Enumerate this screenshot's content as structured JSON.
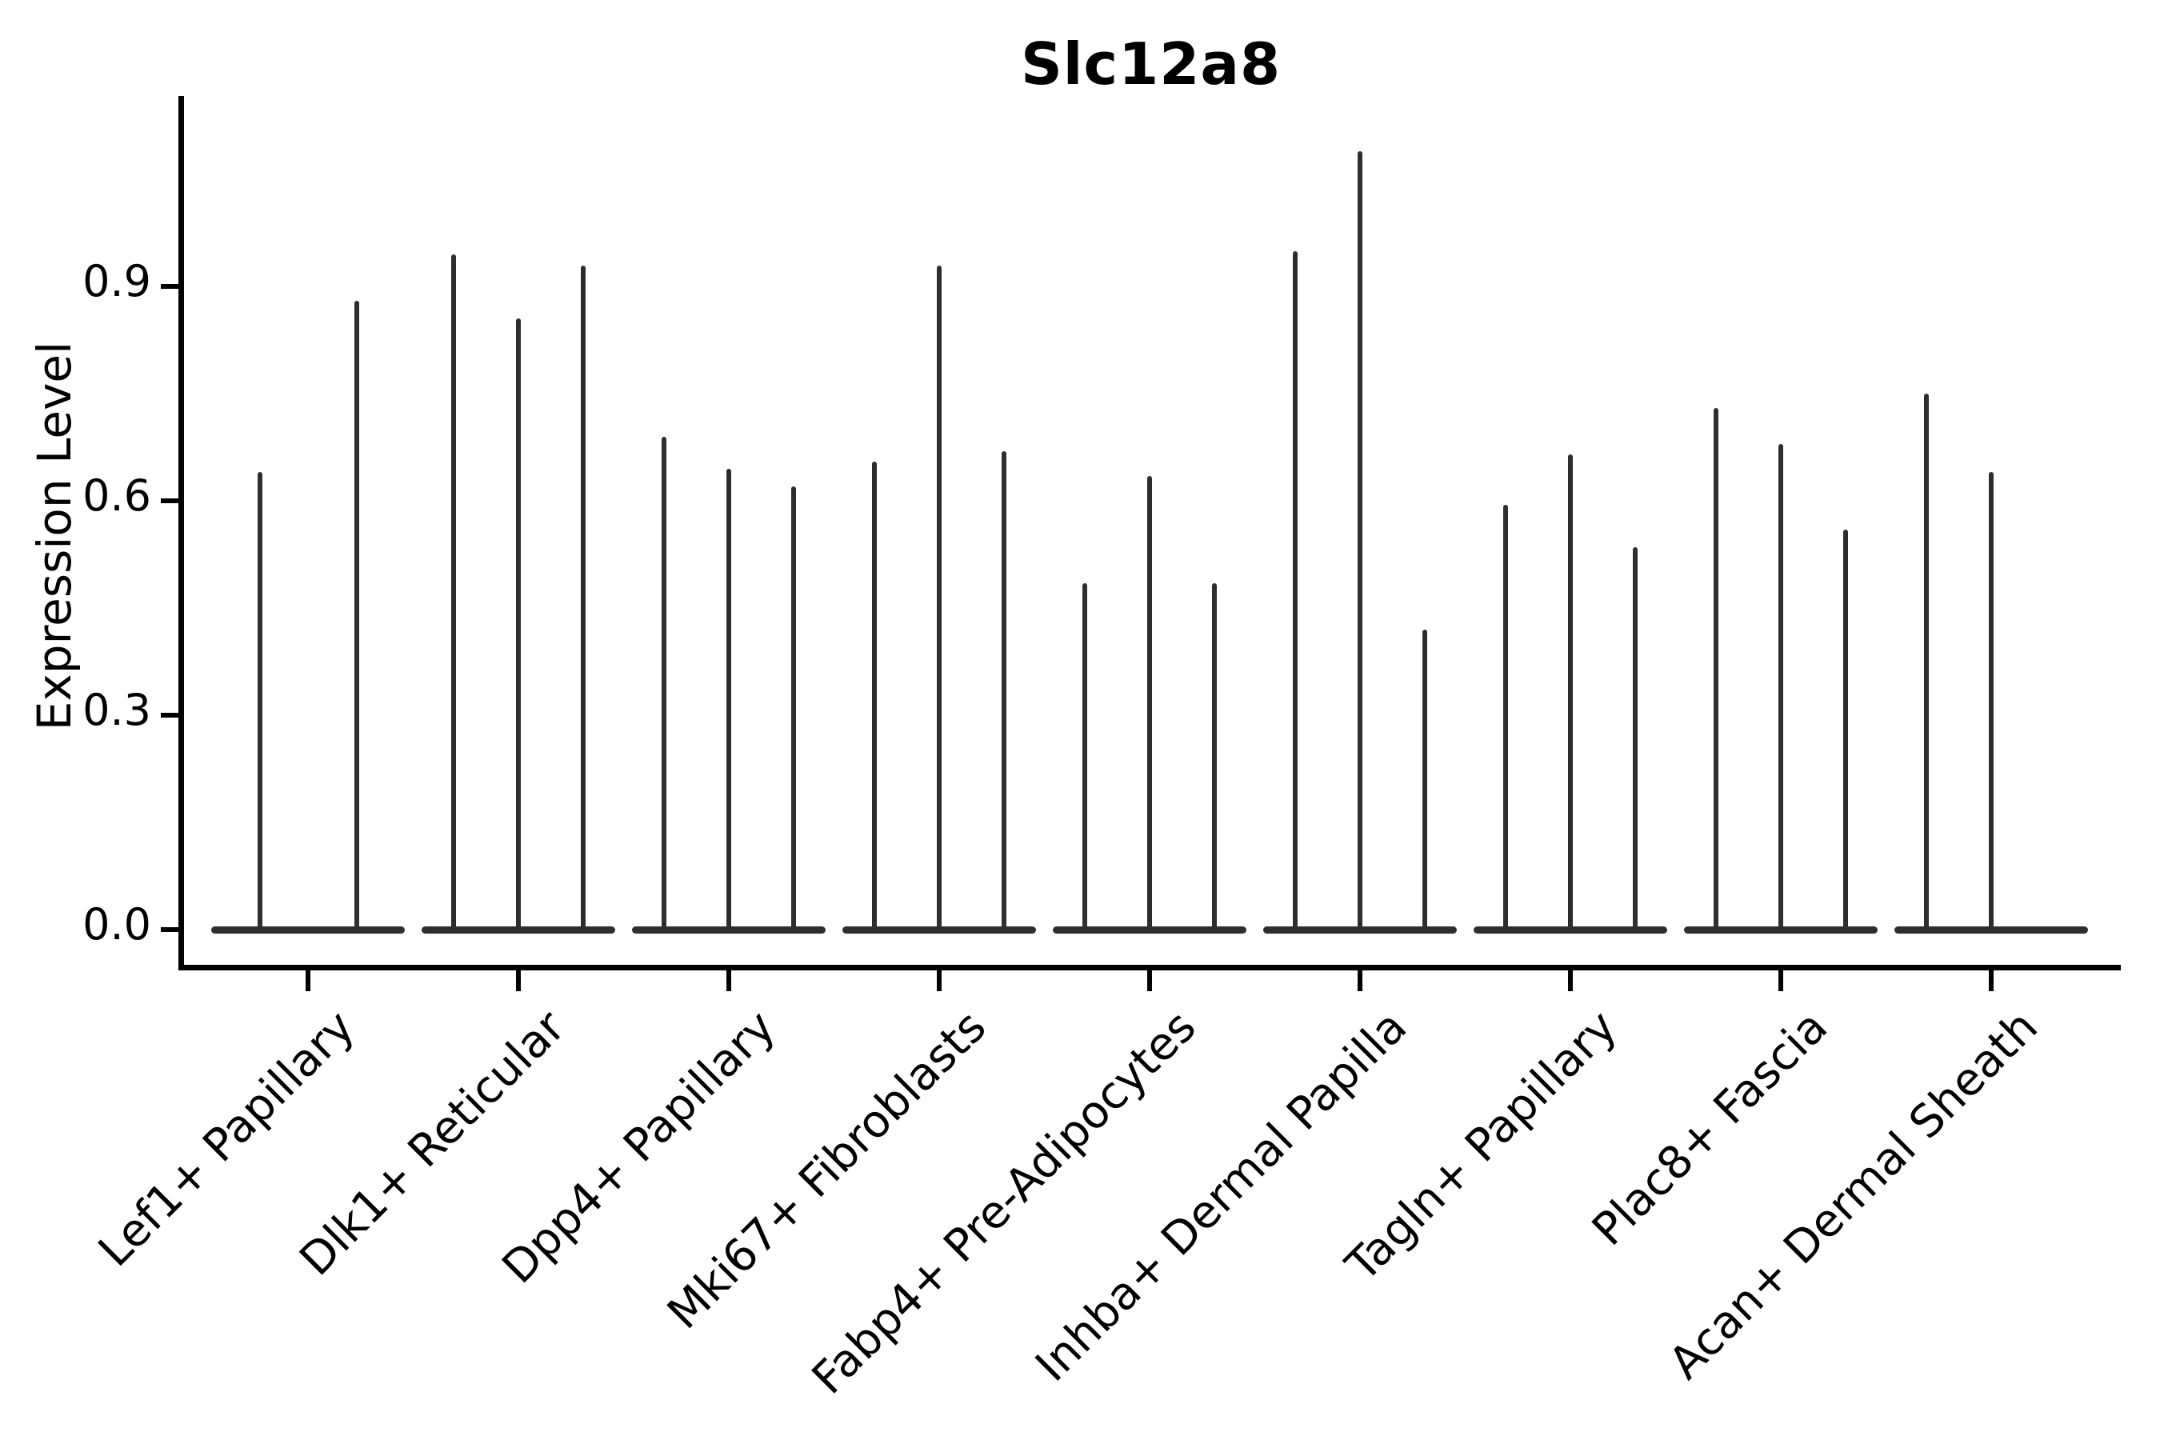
{
  "chart_data": {
    "type": "violin",
    "title": "Slc12a8",
    "xlabel": "",
    "ylabel": "Expression Level",
    "yticks": [
      0.0,
      0.3,
      0.6,
      0.9
    ],
    "ylim": [
      -0.05,
      1.17
    ],
    "grid": false,
    "legend": "none",
    "description": "Violin plot of Slc12a8 expression; each category shows 2-3 very thin violins (flat base at 0 with a narrow spike up to the max expression value).",
    "categories": [
      "Lef1+ Papillary",
      "Dlk1+ Reticular",
      "Dpp4+ Papillary",
      "Mki67+ Fibroblasts",
      "Fabp4+ Pre-Adipocytes",
      "Inhba+ Dermal Papilla",
      "Tagln+ Papillary",
      "Plac8+ Fascia",
      "Acan+ Dermal Sheath"
    ],
    "groups": [
      {
        "label": "Lef1+ Papillary",
        "peaks": [
          0.64,
          0.88
        ]
      },
      {
        "label": "Dlk1+ Reticular",
        "peaks": [
          0.945,
          0.855,
          0.93
        ]
      },
      {
        "label": "Dpp4+ Papillary",
        "peaks": [
          0.69,
          0.645,
          0.62
        ]
      },
      {
        "label": "Mki67+ Fibroblasts",
        "peaks": [
          0.655,
          0.93,
          0.67
        ]
      },
      {
        "label": "Fabp4+ Pre-Adipocytes",
        "peaks": [
          0.485,
          0.635,
          0.485
        ]
      },
      {
        "label": "Inhba+ Dermal Papilla",
        "peaks": [
          0.95,
          1.09,
          0.42
        ]
      },
      {
        "label": "Tagln+ Papillary",
        "peaks": [
          0.595,
          0.665,
          0.535
        ]
      },
      {
        "label": "Plac8+ Fascia",
        "peaks": [
          0.73,
          0.68,
          0.56
        ]
      },
      {
        "label": "Acan+ Dermal Sheath",
        "peaks": [
          0.75,
          0.64,
          0
        ]
      }
    ],
    "colors": {
      "violin": "#2e2e2e",
      "axis": "#000000",
      "background": "#ffffff"
    }
  }
}
